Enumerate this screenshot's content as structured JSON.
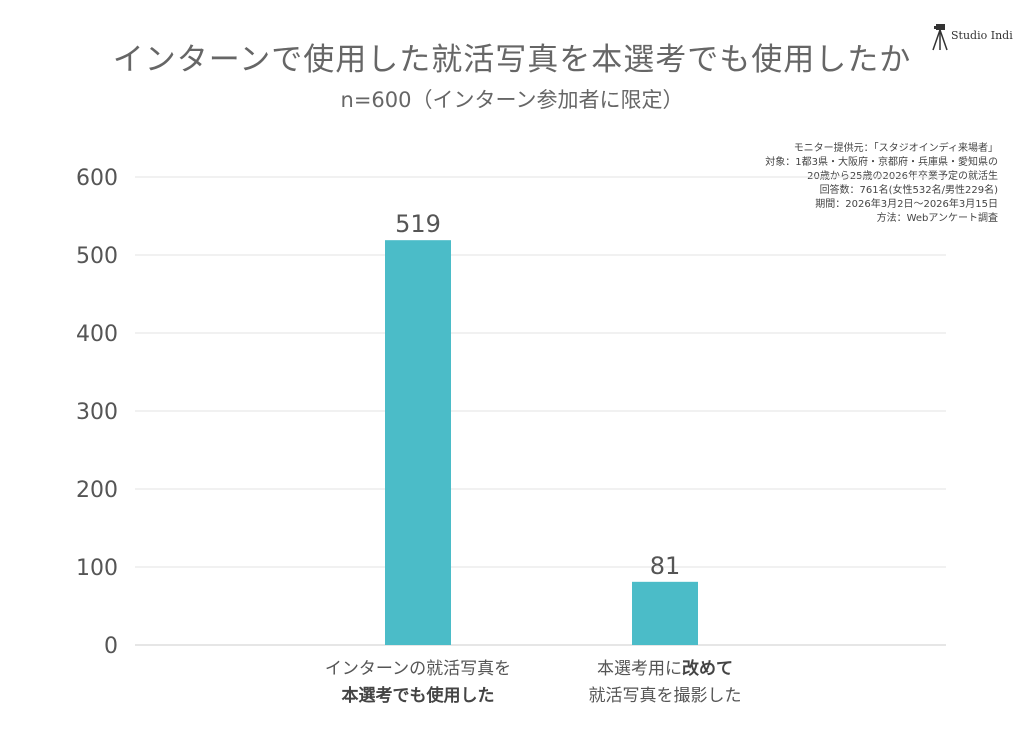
{
  "title": "インターンで使用した就活写真を本選考でも使用したか",
  "subtitle": "n=600（インターン参加者に限定）",
  "logo": {
    "text": "Studio Indi",
    "icon": "camera-tripod-icon"
  },
  "survey_note": [
    "モニター提供元：「スタジオインディ来場者」",
    "対象：1都3県・大阪府・京都府・兵庫県・愛知県の",
    "20歳から25歳の2026年卒業予定の就活生",
    "回答数：761名(女性532名/男性229名)",
    "期間：2026年3月2日〜2026年3月15日",
    "方法：Webアンケート調査"
  ],
  "colors": {
    "bar": "#4bbcc8",
    "grid": "#e3e3e3",
    "axis": "#cccccc",
    "text": "#555555"
  },
  "chart_data": {
    "type": "bar",
    "categories": [
      [
        "インターンの就活写真を",
        "本選考でも使用した"
      ],
      [
        "本選考用に改めて",
        "就活写真を撮影した"
      ]
    ],
    "category_label_parts": [
      [
        [
          {
            "text": "インターンの就活写真を",
            "bold": false
          }
        ],
        [
          {
            "text": "本選考でも使用した",
            "bold": true
          }
        ]
      ],
      [
        [
          {
            "text": "本選考用に",
            "bold": false
          },
          {
            "text": "改めて",
            "bold": true
          }
        ],
        [
          {
            "text": "就活写真を撮影した",
            "bold": false
          }
        ]
      ]
    ],
    "values": [
      519,
      81
    ],
    "data_labels": [
      "519",
      "81"
    ],
    "ylim": [
      0,
      600
    ],
    "yticks": [
      0,
      100,
      200,
      300,
      400,
      500,
      600
    ],
    "grid": true,
    "legend": false
  }
}
